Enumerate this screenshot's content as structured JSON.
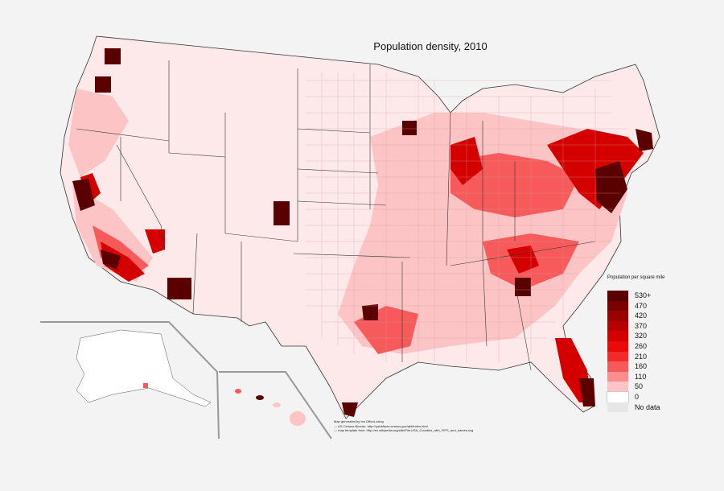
{
  "title": "Population density, 2010",
  "legend": {
    "title": "Population per square mile",
    "items": [
      {
        "label": "530+",
        "color": "#5a0000"
      },
      {
        "label": "470",
        "color": "#7a0000"
      },
      {
        "label": "420",
        "color": "#9a0000"
      },
      {
        "label": "370",
        "color": "#b80000"
      },
      {
        "label": "320",
        "color": "#d40000"
      },
      {
        "label": "260",
        "color": "#ea0a0a"
      },
      {
        "label": "210",
        "color": "#f42a2a"
      },
      {
        "label": "160",
        "color": "#f75a5a"
      },
      {
        "label": "110",
        "color": "#fa8e8e"
      },
      {
        "label": "50",
        "color": "#fcc4c4"
      },
      {
        "label": "0",
        "color": "#ffffff"
      },
      {
        "label": "No data",
        "color": "#e6e6e6"
      }
    ]
  },
  "credits": [
    "Map generated by Ian Offord using",
    "— US Census Bureau: http://quickfacts.census.gov/qfd/index.html",
    "— map template from: http://en.wikipedia.org/wiki/File:USA_Counties_with_FIPS_and_names.svg"
  ]
}
